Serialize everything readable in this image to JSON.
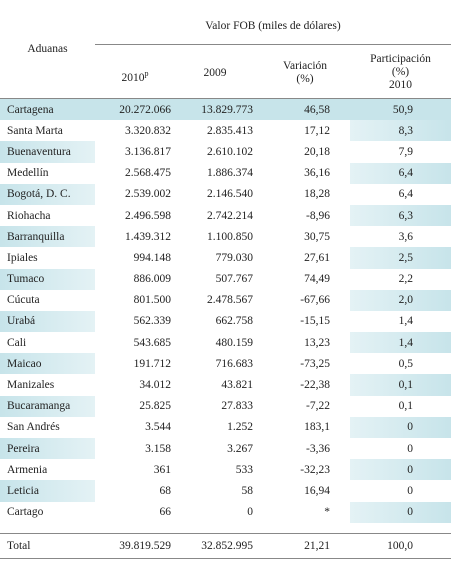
{
  "header": {
    "row_label": "Aduanas",
    "group": "Valor FOB (miles de dólares)",
    "columns": [
      {
        "text": "2010",
        "sup": "p"
      },
      {
        "text": "2009"
      },
      {
        "lines": [
          "Variación",
          "(%)"
        ]
      },
      {
        "lines": [
          "Participación",
          "(%)",
          "2010"
        ]
      }
    ]
  },
  "table": {
    "rows": [
      [
        "Cartagena",
        "20.272.066",
        "13.829.773",
        "46,58",
        "50,9"
      ],
      [
        "Santa Marta",
        "3.320.832",
        "2.835.413",
        "17,12",
        "8,3"
      ],
      [
        "Buenaventura",
        "3.136.817",
        "2.610.102",
        "20,18",
        "7,9"
      ],
      [
        "Medellín",
        "2.568.475",
        "1.886.374",
        "36,16",
        "6,4"
      ],
      [
        "Bogotá, D. C.",
        "2.539.002",
        "2.146.540",
        "18,28",
        "6,4"
      ],
      [
        "Riohacha",
        "2.496.598",
        "2.742.214",
        "-8,96",
        "6,3"
      ],
      [
        "Barranquilla",
        "1.439.312",
        "1.100.850",
        "30,75",
        "3,6"
      ],
      [
        "Ipiales",
        "994.148",
        "779.030",
        "27,61",
        "2,5"
      ],
      [
        "Tumaco",
        "886.009",
        "507.767",
        "74,49",
        "2,2"
      ],
      [
        "Cúcuta",
        "801.500",
        "2.478.567",
        "-67,66",
        "2,0"
      ],
      [
        "Urabá",
        "562.339",
        "662.758",
        "-15,15",
        "1,4"
      ],
      [
        "Cali",
        "543.685",
        "480.159",
        "13,23",
        "1,4"
      ],
      [
        "Maicao",
        "191.712",
        "716.683",
        "-73,25",
        "0,5"
      ],
      [
        "Manizales",
        "34.012",
        "43.821",
        "-22,38",
        "0,1"
      ],
      [
        "Bucaramanga",
        "25.825",
        "27.833",
        "-7,22",
        "0,1"
      ],
      [
        "San Andrés",
        "3.544",
        "1.252",
        "183,1",
        "0"
      ],
      [
        "Pereira",
        "3.158",
        "3.267",
        "-3,36",
        "0"
      ],
      [
        "Armenia",
        "361",
        "533",
        "-32,23",
        "0"
      ],
      [
        "Leticia",
        "68",
        "58",
        "16,94",
        "0"
      ],
      [
        "Cartago",
        "66",
        "0",
        "*",
        "0"
      ]
    ],
    "total": [
      "Total",
      "39.819.529",
      "32.852.995",
      "21,21",
      "100,0"
    ]
  }
}
